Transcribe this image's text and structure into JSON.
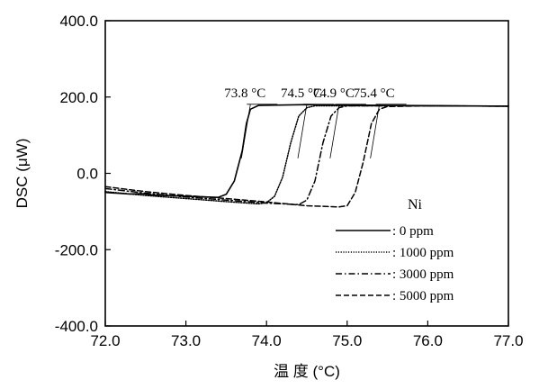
{
  "chart_data": {
    "type": "line",
    "title": "",
    "xlabel": "温 度 (°C)",
    "ylabel": "DSC (μW)",
    "xlim": [
      72.0,
      77.0
    ],
    "ylim": [
      -400.0,
      400.0
    ],
    "x_ticks": [
      "72.0",
      "73.0",
      "74.0",
      "75.0",
      "76.0",
      "77.0"
    ],
    "y_ticks": [
      "-400.0",
      "-200.0",
      "0.0",
      "200.0",
      "400.0"
    ],
    "grid": false,
    "legend": {
      "title": "Ni",
      "placement": "bottom-right",
      "entries": [
        ": 0 ppm",
        ": 1000 ppm",
        ": 3000 ppm",
        ": 5000 ppm"
      ]
    },
    "annotations": [
      {
        "text": "73.8 °C",
        "x": 73.8,
        "y": 181
      },
      {
        "text": "74.5 °C",
        "x": 74.5,
        "y": 181
      },
      {
        "text": "74.9 °C",
        "x": 74.9,
        "y": 181
      },
      {
        "text": "75.4 °C",
        "x": 75.4,
        "y": 181
      }
    ],
    "series": [
      {
        "name": ": 0 ppm",
        "dash": "solid",
        "x": [
          72.0,
          72.3,
          72.45,
          72.6,
          73.0,
          73.4,
          73.5,
          73.6,
          73.7,
          73.75,
          73.8,
          73.9,
          74.5,
          75.5,
          77.0
        ],
        "y": [
          -50,
          -54,
          -53,
          -57,
          -60,
          -63,
          -55,
          -20,
          60,
          130,
          168,
          178,
          180,
          178,
          176
        ]
      },
      {
        "name": ": 1000 ppm",
        "dash": "dotted",
        "x": [
          72.0,
          72.5,
          73.0,
          73.5,
          73.9,
          74.0,
          74.1,
          74.2,
          74.3,
          74.4,
          74.5,
          74.6,
          75.5,
          77.0
        ],
        "y": [
          -48,
          -58,
          -66,
          -74,
          -80,
          -77,
          -60,
          -10,
          80,
          150,
          172,
          177,
          177,
          176
        ]
      },
      {
        "name": ": 3000 ppm",
        "dash": "dashdot",
        "x": [
          72.0,
          72.5,
          73.0,
          73.5,
          74.0,
          74.4,
          74.5,
          74.6,
          74.7,
          74.8,
          74.9,
          75.0,
          75.8,
          77.0
        ],
        "y": [
          -40,
          -52,
          -62,
          -70,
          -78,
          -82,
          -70,
          -20,
          80,
          150,
          172,
          177,
          177,
          176
        ]
      },
      {
        "name": ": 5000 ppm",
        "dash": "dashed",
        "x": [
          72.0,
          72.5,
          73.0,
          73.5,
          74.0,
          74.5,
          74.9,
          75.0,
          75.1,
          75.2,
          75.3,
          75.4,
          75.5,
          76.0,
          77.0
        ],
        "y": [
          -35,
          -48,
          -58,
          -66,
          -75,
          -85,
          -88,
          -85,
          -50,
          30,
          130,
          168,
          175,
          177,
          176
        ]
      }
    ]
  }
}
